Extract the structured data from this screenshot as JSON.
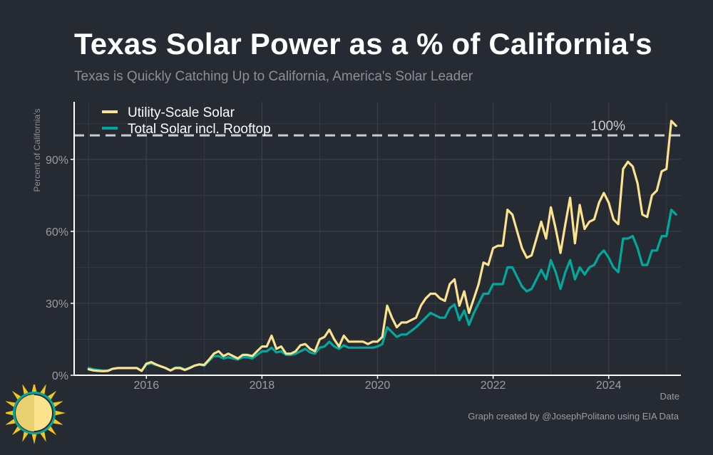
{
  "title": "Texas Solar Power as a % of California's",
  "subtitle": "Texas is Quickly Catching Up to California, America's Solar Leader",
  "caption": "Graph created by @JosephPolitano using EIA Data",
  "colors": {
    "background": "#262a33",
    "utility": "#fbe38e",
    "total": "#00a99d",
    "grid": "#3a3e47",
    "axis": "#ffffff",
    "reference": "#c9ccd2",
    "logo_ring": "#00a99d",
    "logo_sun": "#fbe38e",
    "logo_rays": "#f5c518"
  },
  "chart_data": {
    "type": "line",
    "title": "Texas Solar Power as a % of California's",
    "xlabel": "Date",
    "ylabel": "Percent of California's",
    "xlim": [
      2014.75,
      2025.25
    ],
    "ylim": [
      0,
      114
    ],
    "x_ticks": [
      2016,
      2018,
      2020,
      2022,
      2024
    ],
    "x_tick_labels": [
      "2016",
      "2018",
      "2020",
      "2022",
      "2024"
    ],
    "y_ticks": [
      0,
      30,
      60,
      90
    ],
    "y_tick_labels": [
      "0%",
      "30%",
      "60%",
      "90%"
    ],
    "grid": true,
    "legend_position": "top-left",
    "reference_line": {
      "value": 100,
      "label": "100%",
      "style": "dashed"
    },
    "x_start": 2015.0,
    "x_step": 0.08333,
    "series": [
      {
        "name": "Utility-Scale Solar",
        "color": "#fbe38e",
        "values": [
          2.5,
          2.0,
          1.8,
          1.7,
          1.8,
          2.7,
          3.0,
          3.0,
          3.0,
          3.0,
          3.0,
          1.8,
          4.8,
          5.5,
          4.5,
          3.7,
          3.0,
          2.0,
          3.0,
          3.0,
          2.2,
          3.0,
          4.0,
          4.5,
          4.3,
          6.5,
          9.0,
          10.0,
          8.0,
          9.0,
          8.0,
          7.0,
          8.5,
          8.5,
          8.0,
          10.0,
          12.0,
          12.0,
          16.5,
          11.0,
          12.0,
          9.0,
          9.0,
          10.0,
          12.5,
          13.0,
          11.0,
          10.0,
          15.0,
          16.0,
          19.0,
          15.0,
          12.0,
          16.5,
          14.0,
          14.0,
          14.0,
          14.0,
          13.0,
          14.0,
          14.0,
          16.0,
          29.0,
          24.0,
          20.0,
          22.0,
          22.0,
          23.0,
          24.0,
          29.0,
          32.0,
          34.0,
          34.0,
          32.0,
          31.0,
          38.0,
          40.0,
          29.0,
          35.0,
          26.0,
          32.0,
          38.0,
          47.0,
          46.0,
          53.0,
          54.0,
          54.0,
          69.0,
          67.0,
          60.0,
          53.0,
          49.0,
          50.0,
          57.0,
          64.0,
          57.0,
          70.0,
          61.0,
          51.0,
          63.0,
          74.0,
          55.0,
          71.0,
          61.0,
          64.0,
          65.0,
          72.0,
          76.0,
          72.0,
          65.0,
          63.0,
          86.0,
          89.0,
          87.0,
          80.0,
          67.0,
          66.0,
          75.0,
          77.0,
          85.0,
          86.0,
          106.0,
          104.0
        ]
      },
      {
        "name": "Total Solar incl. Rooftop",
        "color": "#00a99d",
        "values": [
          3.0,
          2.5,
          2.2,
          2.0,
          2.0,
          2.7,
          3.0,
          3.0,
          3.0,
          3.0,
          3.0,
          1.8,
          4.5,
          5.0,
          4.3,
          3.7,
          3.0,
          2.0,
          3.2,
          3.2,
          2.4,
          3.2,
          4.0,
          4.5,
          4.0,
          6.0,
          8.0,
          8.0,
          7.0,
          7.5,
          7.0,
          6.5,
          7.5,
          7.5,
          7.0,
          8.5,
          10.0,
          10.0,
          11.5,
          9.5,
          10.0,
          8.5,
          8.5,
          9.0,
          10.0,
          11.0,
          9.5,
          9.0,
          11.5,
          12.0,
          14.0,
          12.0,
          11.0,
          12.5,
          11.5,
          11.5,
          11.5,
          11.5,
          11.5,
          11.5,
          12.0,
          13.0,
          20.0,
          18.0,
          16.0,
          17.0,
          17.0,
          18.5,
          20.0,
          22.0,
          24.0,
          26.0,
          25.0,
          24.0,
          24.0,
          28.0,
          29.5,
          23.0,
          27.0,
          21.0,
          26.0,
          30.0,
          34.0,
          34.0,
          38.0,
          38.0,
          38.0,
          45.0,
          45.0,
          41.0,
          37.0,
          35.0,
          36.0,
          40.0,
          44.0,
          40.0,
          48.0,
          43.0,
          36.0,
          43.0,
          48.0,
          40.0,
          45.0,
          42.0,
          45.0,
          46.0,
          50.0,
          52.0,
          49.0,
          45.0,
          43.0,
          57.0,
          57.0,
          58.0,
          53.0,
          46.0,
          46.0,
          52.0,
          52.0,
          58.0,
          58.0,
          69.0,
          67.0
        ]
      }
    ]
  }
}
